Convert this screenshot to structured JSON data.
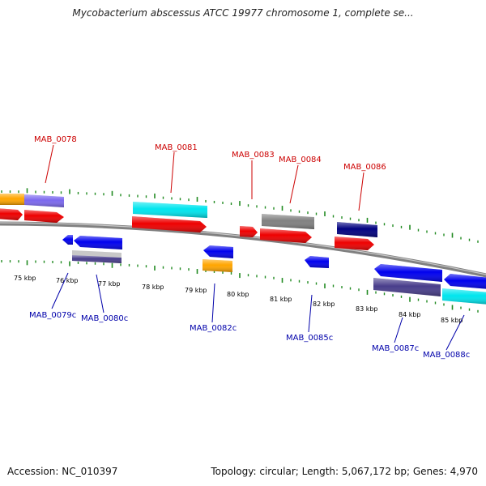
{
  "title": "Mycobacterium abscessus ATCC 19977 chromosome 1, complete se...",
  "footer": {
    "accession": "Accession: NC_010397",
    "summary": "Topology: circular; Length: 5,067,172 bp; Genes: 4,970"
  },
  "colors": {
    "backbone": "#808080",
    "tick": "#228b22",
    "forward_gene": "#ee0000",
    "reverse_gene": "#0000ee",
    "cyan": "#00e5ee",
    "orange": "#ffa500",
    "slate": "#7b68ee",
    "gray": "#808080",
    "navy": "#000080",
    "darkslate": "#483d8b",
    "lightgray": "#c8c8c8"
  },
  "scale_labels": [
    "75 kbp",
    "76 kbp",
    "77 kbp",
    "78 kbp",
    "79 kbp",
    "80 kbp",
    "81 kbp",
    "82 kbp",
    "83 kbp",
    "84 kbp",
    "85 kbp"
  ],
  "top_genes": [
    "MAB_0078",
    "MAB_0081",
    "MAB_0083",
    "MAB_0084",
    "MAB_0086"
  ],
  "bottom_genes": [
    "MAB_0079c",
    "MAB_0080c",
    "MAB_0082c",
    "MAB_0085c",
    "MAB_0087c",
    "MAB_0088c"
  ]
}
